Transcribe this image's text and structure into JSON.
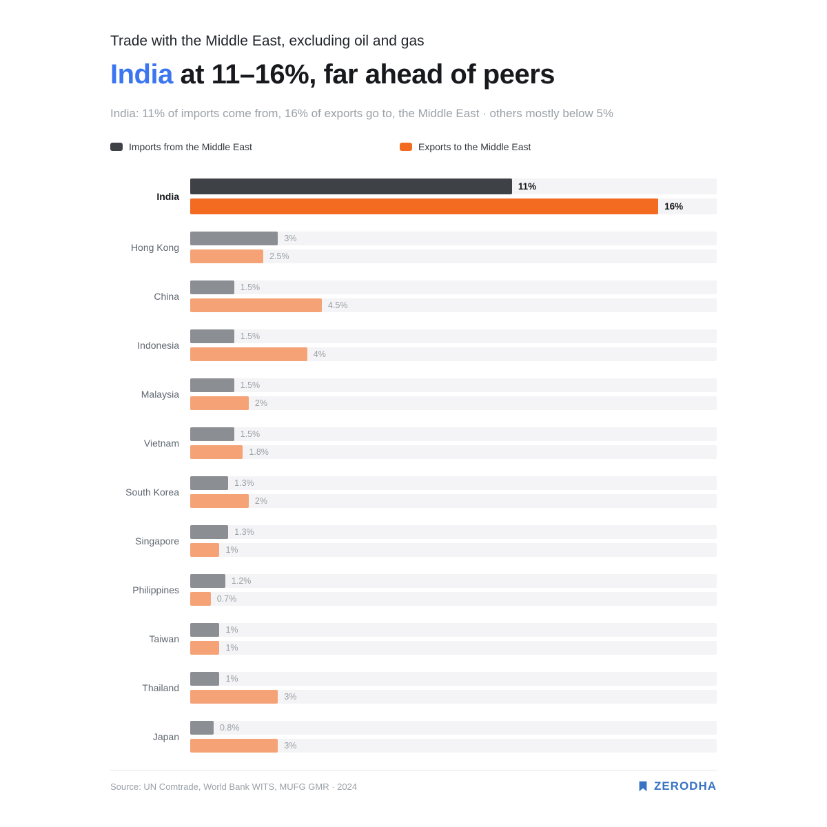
{
  "header": {
    "eyebrow": "Trade with the Middle East, excluding oil and gas",
    "title_highlight": "India",
    "title_rest": " at 11–16%, far ahead of peers",
    "subtitle": "India: 11% of imports come from, 16% of exports go to, the Middle East · others mostly below 5%"
  },
  "legend": [
    {
      "label": "Imports from the Middle East",
      "color": "#3e4247"
    },
    {
      "label": "Exports to the Middle East",
      "color": "#f26b21"
    }
  ],
  "colors": {
    "import": "#3e4247",
    "export": "#f26b21",
    "import_muted": "#8b8e93",
    "export_muted": "#f5a376",
    "track": "#f4f4f6",
    "accent_blue": "#3b76f0",
    "brand_blue": "#3873c4"
  },
  "chart_data": {
    "type": "bar",
    "orientation": "horizontal",
    "title": "India at 11–16%, far ahead of peers",
    "categories": [
      "India",
      "Hong Kong",
      "China",
      "Indonesia",
      "Malaysia",
      "Vietnam",
      "South Korea",
      "Singapore",
      "Philippines",
      "Taiwan",
      "Thailand",
      "Japan"
    ],
    "series": [
      {
        "name": "Imports from the Middle East",
        "values": [
          11,
          3,
          1.5,
          1.5,
          1.5,
          1.5,
          1.3,
          1.3,
          1.2,
          1,
          1,
          0.8
        ],
        "labels": [
          "11%",
          "3%",
          "1.5%",
          "1.5%",
          "1.5%",
          "1.5%",
          "1.3%",
          "1.3%",
          "1.2%",
          "1%",
          "1%",
          "0.8%"
        ]
      },
      {
        "name": "Exports to the Middle East",
        "values": [
          16,
          2.5,
          4.5,
          4,
          2,
          1.8,
          2,
          1,
          0.7,
          1,
          3,
          3
        ],
        "labels": [
          "16%",
          "2.5%",
          "4.5%",
          "4%",
          "2%",
          "1.8%",
          "2%",
          "1%",
          "0.7%",
          "1%",
          "3%",
          "3%"
        ]
      }
    ],
    "xlim": [
      0,
      18
    ],
    "highlight_category": "India",
    "legend_position": "top",
    "grid": false
  },
  "footer": {
    "source": "Source: UN Comtrade, World Bank WITS, MUFG GMR · 2024",
    "brand": "ZERODHA"
  }
}
